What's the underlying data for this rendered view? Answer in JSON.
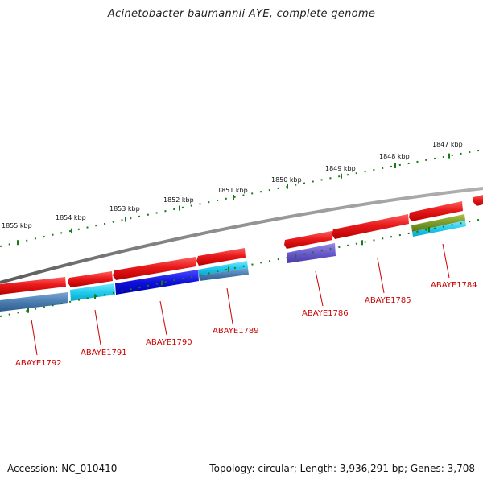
{
  "title": "Acinetobacter baumannii AYE, complete genome",
  "accession": "Accession: NC_010410",
  "summary": "Topology: circular; Length: 3,936,291 bp; Genes: 3,708",
  "kbp_labels": [
    "1847 kbp",
    "1848 kbp",
    "1849 kbp",
    "1850 kbp",
    "1851 kbp",
    "1852 kbp",
    "1853 kbp",
    "1854 kbp",
    "1855 kbp"
  ],
  "gene_labels": [
    "ABAYE1784",
    "ABAYE1785",
    "ABAYE1786",
    "ABAYE1789",
    "ABAYE1790",
    "ABAYE1791",
    "ABAYE1792"
  ],
  "colors": {
    "backbone": "#8a8a8a",
    "tick": "#1a7a1a",
    "gene_red": "#e8191b",
    "label_red": "#cc0000",
    "cog_steel": "#4a7db0",
    "cog_cyan": "#22ccee",
    "cog_blue": "#1010dd",
    "cog_purple": "#6a5acd",
    "cog_olive": "#7a9a2a"
  }
}
